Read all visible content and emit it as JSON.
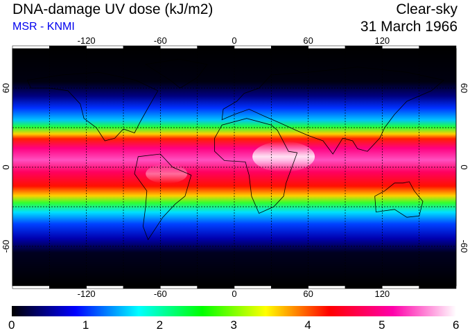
{
  "header": {
    "title": "DNA-damage UV dose (kJ/m2)",
    "subtitle": "MSR - KNMI",
    "sky_condition": "Clear-sky",
    "date": "31 March 1966"
  },
  "map": {
    "projection": "equirectangular",
    "lon_range": [
      -180,
      180
    ],
    "lat_range": [
      -90,
      90
    ],
    "lon_ticks": [
      {
        "value": -120,
        "label": "-120"
      },
      {
        "value": -60,
        "label": "-60"
      },
      {
        "value": 0,
        "label": "0"
      },
      {
        "value": 60,
        "label": "60"
      },
      {
        "value": 120,
        "label": "120"
      }
    ],
    "lat_ticks": [
      {
        "value": 60,
        "label": "60"
      },
      {
        "value": 0,
        "label": "0"
      },
      {
        "value": -60,
        "label": "-60"
      }
    ],
    "gridlines": "dotted",
    "field": "UV dose shading (high near equator, low toward poles)"
  },
  "colorbar": {
    "min": 0,
    "max": 6,
    "labels": [
      "0",
      "1",
      "2",
      "3",
      "4",
      "5",
      "6"
    ],
    "colors": [
      "#000000",
      "#0000ff",
      "#00ffff",
      "#00ff00",
      "#ffff00",
      "#ff0000",
      "#ff00aa",
      "#ffffff"
    ]
  }
}
